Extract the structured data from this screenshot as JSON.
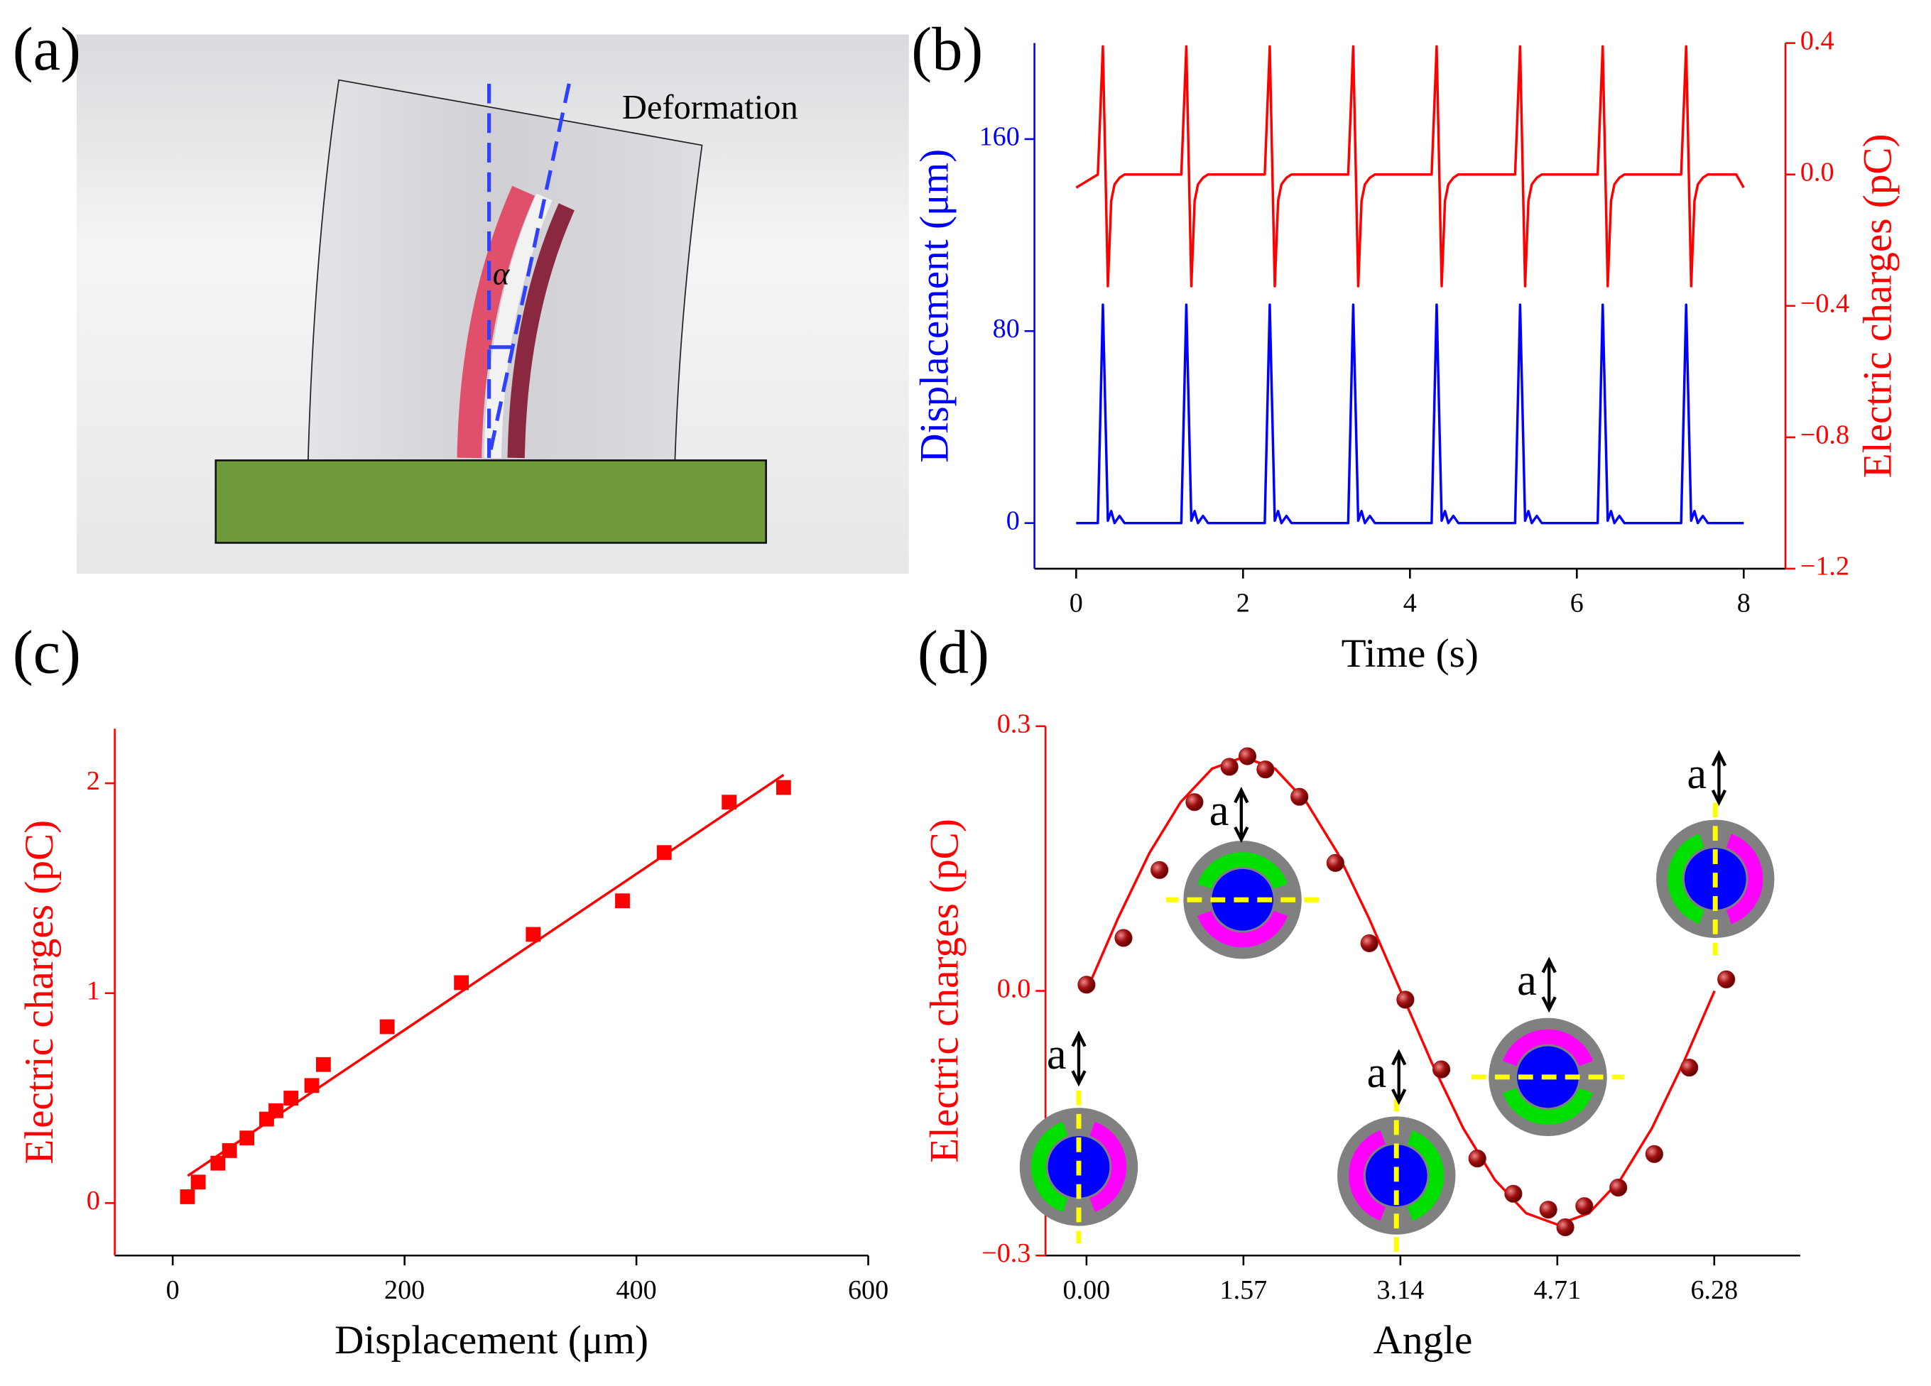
{
  "panel_labels": [
    "(a)",
    "(b)",
    "(c)",
    "(d)"
  ],
  "diagram": {
    "label": "Deformation",
    "angle_symbol": "α"
  },
  "chart_data": [
    {
      "type": "line",
      "xlabel": "Time (s)",
      "ylabel": "Displacement (μm)",
      "y2label": "Electric charges (pC)",
      "x": [
        0,
        0.26,
        0.32,
        0.38,
        0.42,
        0.46,
        0.52,
        0.58,
        0.92,
        1.26,
        1.32,
        1.38,
        1.42,
        1.46,
        1.52,
        1.58,
        1.92,
        2.26,
        2.32,
        2.38,
        2.42,
        2.46,
        2.52,
        2.58,
        2.92,
        3.26,
        3.32,
        3.38,
        3.42,
        3.46,
        3.52,
        3.58,
        3.92,
        4.26,
        4.32,
        4.38,
        4.42,
        4.46,
        4.52,
        4.58,
        4.92,
        5.26,
        5.32,
        5.38,
        5.42,
        5.46,
        5.52,
        5.58,
        5.92,
        6.25,
        6.31,
        6.37,
        6.41,
        6.45,
        6.51,
        6.57,
        6.91,
        7.25,
        7.31,
        7.37,
        7.41,
        7.45,
        7.51,
        7.57,
        7.91,
        8
      ],
      "series": [
        {
          "color": "#0000ff",
          "values": [
            0,
            0,
            91,
            1,
            5,
            0,
            3,
            0,
            0,
            0,
            91,
            1,
            5,
            0,
            3,
            0,
            0,
            0,
            91,
            1,
            5,
            0,
            3,
            0,
            0,
            0,
            91,
            1,
            5,
            0,
            3,
            0,
            0,
            0,
            91,
            1,
            5,
            0,
            3,
            0,
            0,
            0,
            91,
            1,
            5,
            0,
            3,
            0,
            0,
            0,
            91,
            1,
            5,
            0,
            3,
            0,
            0,
            0,
            91,
            1,
            5,
            0,
            3,
            0,
            0,
            0
          ]
        },
        {
          "color": "#ff0000",
          "axis": "y2",
          "values": [
            -0.04,
            0,
            0.39,
            -0.34,
            -0.08,
            -0.03,
            -0.01,
            0,
            0,
            0,
            0.39,
            -0.34,
            -0.08,
            -0.03,
            -0.01,
            0,
            0,
            0,
            0.39,
            -0.34,
            -0.08,
            -0.03,
            -0.01,
            0,
            0,
            0,
            0.39,
            -0.34,
            -0.08,
            -0.03,
            -0.01,
            0,
            0,
            0,
            0.39,
            -0.34,
            -0.08,
            -0.03,
            -0.01,
            0,
            0,
            0,
            0.39,
            -0.34,
            -0.08,
            -0.03,
            -0.01,
            0,
            0,
            0,
            0.39,
            -0.34,
            -0.08,
            -0.03,
            -0.01,
            0,
            0,
            0,
            0.39,
            -0.34,
            -0.08,
            -0.03,
            -0.01,
            0,
            0,
            -0.04
          ]
        }
      ],
      "xlim": [
        -0.5,
        8.5
      ],
      "xticks": [
        0,
        2,
        4,
        6,
        8
      ],
      "ylim": [
        -19,
        200
      ],
      "yticks": [
        0,
        80,
        160
      ],
      "y2lim": [
        -1.2,
        0.4
      ],
      "y2ticks": [
        {
          "value": -1.2,
          "label": "−1.2"
        },
        {
          "value": -0.8,
          "label": "−0.8"
        },
        {
          "value": -0.4,
          "label": "−0.4"
        },
        {
          "value": 0,
          "label": "0.0"
        },
        {
          "value": 0.4,
          "label": "0.4"
        }
      ]
    },
    {
      "type": "scatter",
      "marker": "square",
      "color": "#ff0000",
      "ycolor": "#ff0000",
      "xlabel": "Displacement (μm)",
      "ylabel": "Electric charges (pC)",
      "x": [
        12.7,
        22,
        39,
        49,
        64,
        81,
        89,
        102,
        120,
        130,
        185,
        249,
        311,
        388,
        424,
        480,
        527
      ],
      "values": [
        0.03,
        0.1,
        0.19,
        0.25,
        0.31,
        0.4,
        0.44,
        0.5,
        0.56,
        0.66,
        0.84,
        1.05,
        1.28,
        1.44,
        1.67,
        1.91,
        1.98
      ],
      "fit": {
        "color": "#ff0000",
        "x": [
          13,
          527
        ],
        "values": [
          0.13,
          2.04
        ]
      },
      "xlim": [
        -50,
        600
      ],
      "xticks": [
        0,
        200,
        400,
        600
      ],
      "ylim": [
        -0.25,
        2.26
      ],
      "yticks": [
        0,
        1,
        2
      ]
    },
    {
      "type": "scatter",
      "marker": "sphere",
      "color": "#a01010",
      "ycolor": "#ff0000",
      "xlabel": "Angle",
      "ylabel": "Electric charges (pC)",
      "x": [
        0,
        0.37,
        0.73,
        1.08,
        1.43,
        1.61,
        1.79,
        2.13,
        2.49,
        2.83,
        3.19,
        3.55,
        3.91,
        4.27,
        4.62,
        4.79,
        4.98,
        5.32,
        5.68,
        6.03,
        6.4
      ],
      "values": [
        0.007,
        0.06,
        0.137,
        0.214,
        0.254,
        0.266,
        0.251,
        0.22,
        0.145,
        0.054,
        -0.01,
        -0.089,
        -0.19,
        -0.23,
        -0.248,
        -0.268,
        -0.244,
        -0.223,
        -0.185,
        -0.087,
        0.013
      ],
      "fit": {
        "color": "#ff0000",
        "x": [
          0,
          0.314,
          0.628,
          0.942,
          1.257,
          1.571,
          1.885,
          2.199,
          2.513,
          2.827,
          3.142,
          3.456,
          3.77,
          4.084,
          4.398,
          4.712,
          5.027,
          5.341,
          5.655,
          5.969,
          6.283
        ],
        "values": [
          0,
          0.082,
          0.156,
          0.214,
          0.252,
          0.265,
          0.252,
          0.214,
          0.156,
          0.082,
          0,
          -0.082,
          -0.156,
          -0.214,
          -0.252,
          -0.265,
          -0.252,
          -0.214,
          -0.156,
          -0.082,
          0
        ]
      },
      "annotations": [
        "a",
        "a",
        "a",
        "a",
        "a"
      ],
      "xlim": [
        -0.41,
        7.14
      ],
      "xticks": [
        {
          "value": 0,
          "label": "0.00"
        },
        1.57,
        3.14,
        4.71,
        6.28
      ],
      "ylim": [
        -0.3,
        0.3
      ],
      "yticks": [
        {
          "value": -0.3,
          "label": "−0.3"
        },
        {
          "value": 0,
          "label": "0.0"
        },
        0.3
      ]
    }
  ]
}
